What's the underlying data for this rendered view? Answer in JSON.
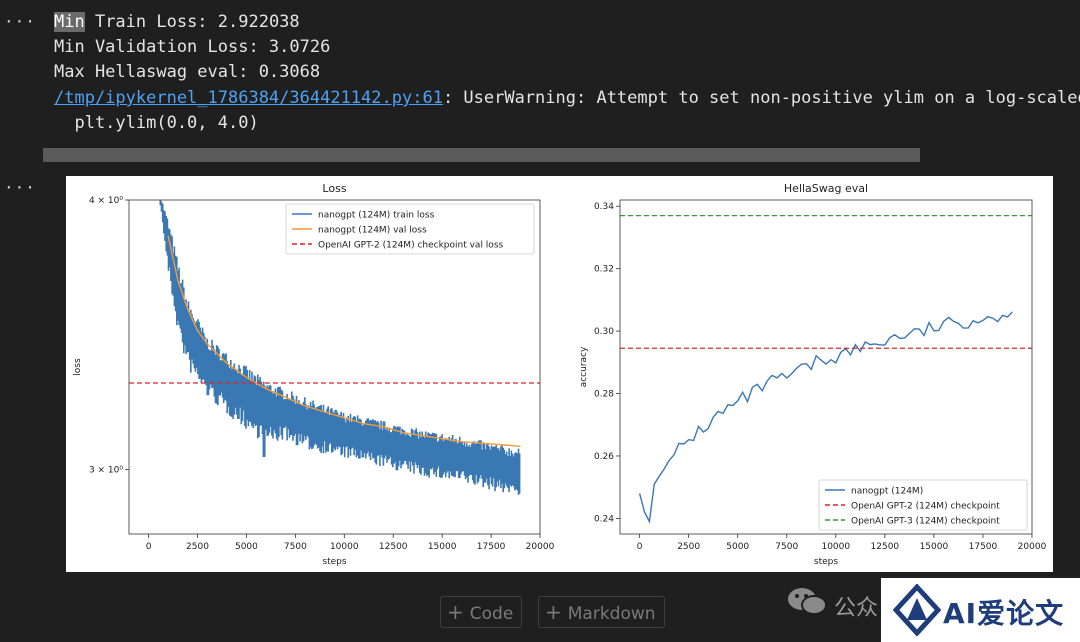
{
  "output": {
    "line1_highlight": "Min",
    "line1_rest": " Train Loss: 2.922038",
    "line2": "Min Validation Loss: 3.0726",
    "line3": "Max Hellaswag eval: 0.3068",
    "warning_link": "/tmp/ipykernel_1786384/364421142.py:61",
    "warning_text": ": UserWarning: Attempt to set non-positive ylim on a log-scaled",
    "warning_line2": "  plt.ylim(0.0, 4.0)",
    "ellipsis": "···"
  },
  "toolbar": {
    "code_label": "Code",
    "markdown_label": "Markdown"
  },
  "watermark": {
    "text": "公众",
    "logo_text": "AI爱论文"
  },
  "colors": {
    "train": "#3a78b4",
    "val": "#f39a3a",
    "red": "#d62728",
    "green": "#2ca02c"
  },
  "chart_data": [
    {
      "type": "line",
      "title": "Loss",
      "xlabel": "steps",
      "ylabel": "loss",
      "yscale": "log",
      "xlim": [
        -1000,
        20000
      ],
      "ylim": [
        2.8,
        4.0
      ],
      "xticks": [
        0,
        2500,
        5000,
        7500,
        10000,
        12500,
        15000,
        17500,
        20000
      ],
      "ytick_labels": [
        "4 × 10⁰",
        "3 × 10⁰"
      ],
      "ytick_values": [
        4.0,
        3.0
      ],
      "legend": "top-right",
      "series": [
        {
          "name": "nanogpt (124M) train loss",
          "x": [
            600,
            1000,
            1500,
            2000,
            3000,
            4000,
            5000,
            6000,
            7000,
            8000,
            10000,
            12000,
            14000,
            16000,
            18000,
            19000
          ],
          "values": [
            4.0,
            3.82,
            3.62,
            3.48,
            3.36,
            3.3,
            3.25,
            3.2,
            3.19,
            3.16,
            3.12,
            3.09,
            3.06,
            3.04,
            3.01,
            3.0
          ],
          "spread": [
            0.02,
            0.1,
            0.13,
            0.12,
            0.1,
            0.1,
            0.1,
            0.1,
            0.08,
            0.08,
            0.07,
            0.07,
            0.07,
            0.07,
            0.07,
            0.07
          ]
        },
        {
          "name": "nanogpt (124M) val loss",
          "x": [
            1000,
            1500,
            2000,
            2500,
            3000,
            4000,
            5000,
            6000,
            7000,
            8000,
            9000,
            10000,
            11000,
            12000,
            13000,
            14000,
            15000,
            16000,
            17000,
            18000,
            19000
          ],
          "values": [
            3.85,
            3.67,
            3.56,
            3.48,
            3.43,
            3.36,
            3.31,
            3.27,
            3.24,
            3.21,
            3.19,
            3.17,
            3.15,
            3.14,
            3.12,
            3.11,
            3.1,
            3.09,
            3.085,
            3.08,
            3.075
          ]
        },
        {
          "name": "OpenAI GPT-2 (124M) checkpoint val loss",
          "constant": 3.29
        }
      ]
    },
    {
      "type": "line",
      "title": "HellaSwag eval",
      "xlabel": "steps",
      "ylabel": "accuracy",
      "xlim": [
        -1000,
        20000
      ],
      "ylim": [
        0.235,
        0.342
      ],
      "xticks": [
        0,
        2500,
        5000,
        7500,
        10000,
        12500,
        15000,
        17500,
        20000
      ],
      "yticks": [
        0.24,
        0.26,
        0.28,
        0.3,
        0.32,
        0.34
      ],
      "legend": "lower-right",
      "series": [
        {
          "name": "nanogpt (124M)",
          "x": [
            0,
            250,
            500,
            750,
            1000,
            1250,
            1500,
            2000,
            2500,
            3000,
            3500,
            4000,
            4500,
            5000,
            5500,
            6000,
            6500,
            7000,
            7500,
            8000,
            8500,
            9000,
            9500,
            10000,
            10500,
            11000,
            11500,
            12000,
            12500,
            13000,
            13500,
            14000,
            14500,
            15000,
            15500,
            16000,
            16500,
            17000,
            17500,
            18000,
            18500,
            19000
          ],
          "values": [
            0.248,
            0.242,
            0.239,
            0.251,
            0.256,
            0.257,
            0.257,
            0.262,
            0.265,
            0.268,
            0.27,
            0.273,
            0.275,
            0.277,
            0.279,
            0.281,
            0.283,
            0.284,
            0.285,
            0.287,
            0.288,
            0.29,
            0.291,
            0.292,
            0.293,
            0.294,
            0.295,
            0.296,
            0.297,
            0.298,
            0.299,
            0.299,
            0.3,
            0.301,
            0.302,
            0.302,
            0.303,
            0.304,
            0.304,
            0.305,
            0.305,
            0.305
          ]
        },
        {
          "name": "OpenAI GPT-2 (124M) checkpoint",
          "constant": 0.2945
        },
        {
          "name": "OpenAI GPT-3 (124M) checkpoint",
          "constant": 0.337
        }
      ]
    }
  ]
}
